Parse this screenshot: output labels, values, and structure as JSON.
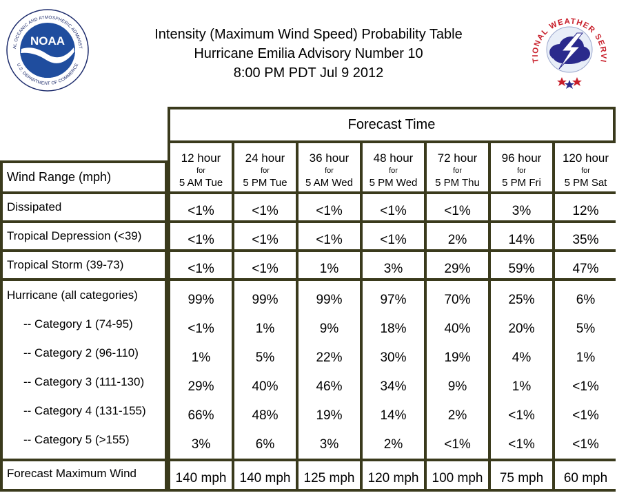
{
  "title": {
    "line1": "Intensity (Maximum Wind Speed) Probability Table",
    "line2": "Hurricane Emilia Advisory Number 10",
    "line3": "8:00 PM PDT Jul 9 2012"
  },
  "logos": {
    "noaa": {
      "text": "NOAA",
      "ring_top": "NATIONAL OCEANIC AND ATMOSPHERIC ADMINISTRATION",
      "ring_bottom": "U.S. DEPARTMENT OF COMMERCE"
    },
    "nws": {
      "ring": "NATIONAL WEATHER SERVICE"
    }
  },
  "table": {
    "forecast_time_label": "Forecast Time",
    "wind_range_label": "Wind Range (mph)",
    "columns": [
      {
        "hours": "12 hour",
        "for": "for",
        "when": "5 AM Tue"
      },
      {
        "hours": "24 hour",
        "for": "for",
        "when": "5 PM Tue"
      },
      {
        "hours": "36 hour",
        "for": "for",
        "when": "5 AM Wed"
      },
      {
        "hours": "48 hour",
        "for": "for",
        "when": "5 PM Wed"
      },
      {
        "hours": "72 hour",
        "for": "for",
        "when": "5 PM Thu"
      },
      {
        "hours": "96 hour",
        "for": "for",
        "when": "5 PM Fri"
      },
      {
        "hours": "120 hour",
        "for": "for",
        "when": "5 PM Sat"
      }
    ],
    "rows": [
      {
        "label": "Dissipated",
        "values": [
          "<1%",
          "<1%",
          "<1%",
          "<1%",
          "<1%",
          "3%",
          "12%"
        ]
      },
      {
        "label": "Tropical Depression (<39)",
        "values": [
          "<1%",
          "<1%",
          "<1%",
          "<1%",
          "2%",
          "14%",
          "35%"
        ]
      },
      {
        "label": "Tropical Storm (39-73)",
        "values": [
          "<1%",
          "<1%",
          "1%",
          "3%",
          "29%",
          "59%",
          "47%"
        ]
      }
    ],
    "hurricane_rows": [
      {
        "label": "Hurricane (all categories)",
        "values": [
          "99%",
          "99%",
          "99%",
          "97%",
          "70%",
          "25%",
          "6%"
        ]
      },
      {
        "label": "-- Category 1 (74-95)",
        "values": [
          "<1%",
          "1%",
          "9%",
          "18%",
          "40%",
          "20%",
          "5%"
        ]
      },
      {
        "label": "-- Category 2 (96-110)",
        "values": [
          "1%",
          "5%",
          "22%",
          "30%",
          "19%",
          "4%",
          "1%"
        ]
      },
      {
        "label": "-- Category 3 (111-130)",
        "values": [
          "29%",
          "40%",
          "46%",
          "34%",
          "9%",
          "1%",
          "<1%"
        ]
      },
      {
        "label": "-- Category 4 (131-155)",
        "values": [
          "66%",
          "48%",
          "19%",
          "14%",
          "2%",
          "<1%",
          "<1%"
        ]
      },
      {
        "label": "-- Category 5 (>155)",
        "values": [
          "3%",
          "6%",
          "3%",
          "2%",
          "<1%",
          "<1%",
          "<1%"
        ]
      }
    ],
    "max_wind": {
      "label": "Forecast Maximum Wind",
      "values": [
        "140 mph",
        "140 mph",
        "125 mph",
        "120 mph",
        "100 mph",
        "75 mph",
        "60 mph"
      ]
    }
  }
}
